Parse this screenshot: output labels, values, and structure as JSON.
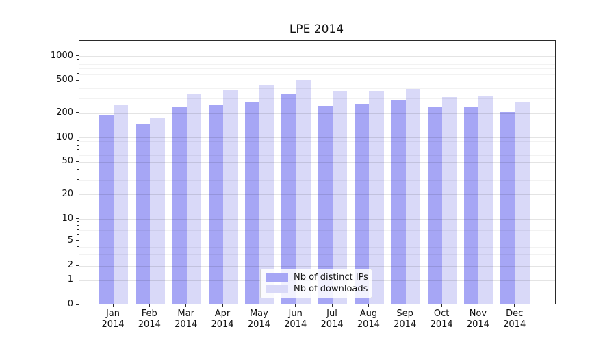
{
  "figure": {
    "title": "LPE 2014"
  },
  "y_axis": {
    "tick_labels": [
      "0",
      "1",
      "2",
      "5",
      "10",
      "20",
      "50",
      "100",
      "200",
      "500",
      "1000"
    ]
  },
  "x_axis": {
    "year": "2014",
    "months": [
      "Jan",
      "Feb",
      "Mar",
      "Apr",
      "May",
      "Jun",
      "Jul",
      "Aug",
      "Sep",
      "Oct",
      "Nov",
      "Dec"
    ]
  },
  "legend": {
    "items": [
      {
        "label": "Nb of distinct IPs",
        "color": "#a6a6f5"
      },
      {
        "label": "Nb of downloads",
        "color": "#d9d9f8"
      }
    ]
  },
  "colors": {
    "bar_distinct_ips": "#a6a6f5",
    "bar_downloads": "#d9d9f8",
    "axis": "#2a2a2a"
  },
  "chart_data": {
    "type": "bar",
    "title": "LPE 2014",
    "categories": [
      "Jan 2014",
      "Feb 2014",
      "Mar 2014",
      "Apr 2014",
      "May 2014",
      "Jun 2014",
      "Jul 2014",
      "Aug 2014",
      "Sep 2014",
      "Oct 2014",
      "Nov 2014",
      "Dec 2014"
    ],
    "series": [
      {
        "name": "Nb of distinct IPs",
        "color": "#a6a6f5",
        "values": [
          181,
          139,
          224,
          243,
          261,
          323,
          236,
          248,
          280,
          231,
          227,
          198
        ]
      },
      {
        "name": "Nb of downloads",
        "color": "#d9d9f8",
        "values": [
          244,
          169,
          330,
          368,
          429,
          489,
          361,
          362,
          380,
          303,
          305,
          263
        ]
      }
    ],
    "yscale": "symlog",
    "yticks": [
      0,
      1,
      2,
      5,
      10,
      20,
      50,
      100,
      200,
      500,
      1000
    ],
    "ylim": [
      0,
      1500
    ],
    "xlabel": "",
    "ylabel": "",
    "grid": true,
    "grid_over_bars": true,
    "legend_position": "lower center"
  }
}
